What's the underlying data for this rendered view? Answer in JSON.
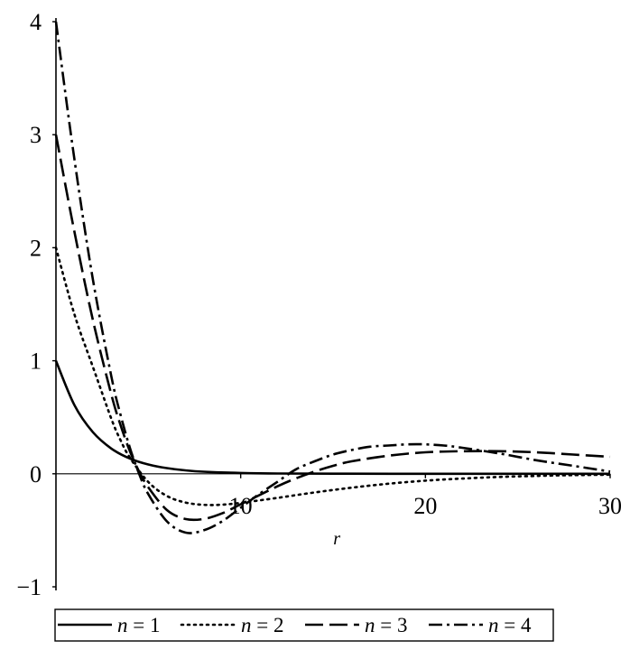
{
  "chart_data": {
    "type": "line",
    "title": "",
    "xlabel": "r",
    "ylabel": "",
    "xlim": [
      0,
      30
    ],
    "ylim": [
      -1,
      4
    ],
    "x_ticks": [
      {
        "value": 10,
        "label": "10"
      },
      {
        "value": 20,
        "label": "20"
      },
      {
        "value": 30,
        "label": "30"
      }
    ],
    "y_ticks": [
      {
        "value": -1,
        "label": "−1"
      },
      {
        "value": 0,
        "label": "0"
      },
      {
        "value": 1,
        "label": "1"
      },
      {
        "value": 2,
        "label": "2"
      },
      {
        "value": 3,
        "label": "3"
      },
      {
        "value": 4,
        "label": "4"
      }
    ],
    "grid": false,
    "legend_position": "bottom",
    "series": [
      {
        "name": "n = 1",
        "name_var": "n",
        "name_rest": " = 1",
        "style": "solid",
        "x": [
          0,
          1,
          2,
          3,
          4,
          5,
          6,
          7,
          8,
          10,
          12,
          15,
          20,
          25,
          30
        ],
        "y": [
          1.0,
          0.607,
          0.368,
          0.223,
          0.135,
          0.082,
          0.05,
          0.03,
          0.018,
          0.007,
          0.0025,
          0.0006,
          0.0,
          0.0,
          0.0
        ]
      },
      {
        "name": "n = 2",
        "name_var": "n",
        "name_rest": " = 2",
        "style": "dotted",
        "x": [
          0,
          1,
          2,
          3,
          3.5,
          4,
          5,
          6,
          7,
          8,
          9,
          10,
          12,
          14,
          16,
          18,
          20,
          22,
          24,
          26,
          28,
          30
        ],
        "y": [
          2.0,
          1.41,
          0.946,
          0.486,
          0.296,
          0.143,
          -0.073,
          -0.196,
          -0.254,
          -0.275,
          -0.273,
          -0.257,
          -0.213,
          -0.165,
          -0.123,
          -0.088,
          -0.061,
          -0.042,
          -0.028,
          -0.019,
          -0.012,
          -0.008
        ]
      },
      {
        "name": "n = 3",
        "name_var": "n",
        "name_rest": " = 3",
        "style": "dashed",
        "x": [
          0,
          1,
          2,
          3,
          3.5,
          4,
          4.5,
          5,
          6,
          7,
          8,
          9,
          10,
          11,
          12,
          13,
          14,
          15,
          16,
          18,
          20,
          22,
          24,
          26,
          28,
          30
        ],
        "y": [
          3.0,
          2.14,
          1.36,
          0.7,
          0.43,
          0.2,
          0.02,
          -0.12,
          -0.32,
          -0.4,
          -0.4,
          -0.35,
          -0.27,
          -0.19,
          -0.11,
          -0.04,
          0.02,
          0.07,
          0.11,
          0.16,
          0.19,
          0.2,
          0.2,
          0.19,
          0.17,
          0.15
        ]
      },
      {
        "name": "n = 4",
        "name_var": "n",
        "name_rest": " = 4",
        "style": "dashdot",
        "x": [
          0,
          1,
          2,
          3,
          3.5,
          4,
          4.5,
          5,
          6,
          7,
          8,
          9,
          10,
          11,
          12,
          13,
          14,
          15,
          16,
          17,
          18,
          19,
          20,
          21,
          22,
          24,
          26,
          28,
          30
        ],
        "y": [
          4.0,
          2.78,
          1.72,
          0.86,
          0.52,
          0.23,
          0.0,
          -0.18,
          -0.42,
          -0.52,
          -0.5,
          -0.42,
          -0.3,
          -0.18,
          -0.07,
          0.04,
          0.11,
          0.17,
          0.21,
          0.24,
          0.25,
          0.26,
          0.26,
          0.25,
          0.23,
          0.18,
          0.12,
          0.07,
          0.02
        ]
      }
    ]
  }
}
